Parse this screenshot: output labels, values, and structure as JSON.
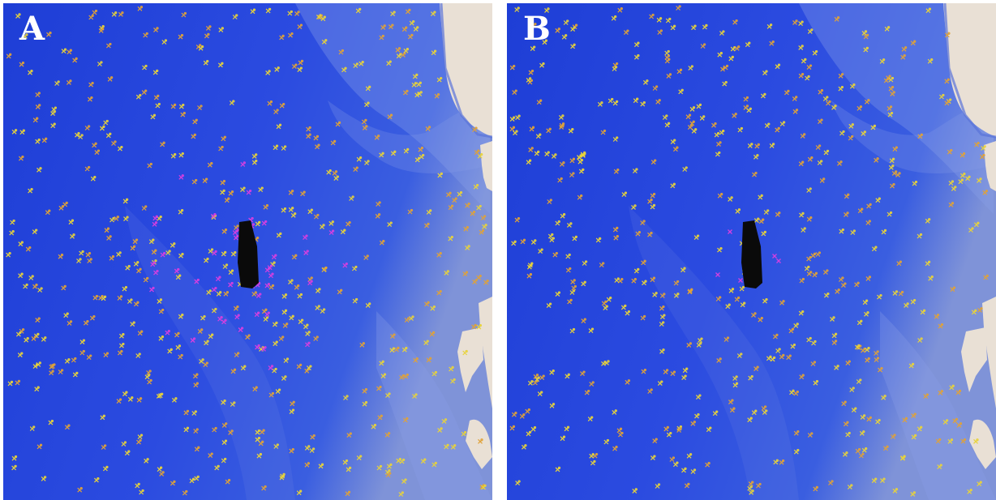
{
  "panels": [
    {
      "id": "A",
      "label": "A",
      "magenta_markers": true
    },
    {
      "id": "B",
      "label": "B",
      "magenta_markers": false
    }
  ],
  "colors": {
    "water_deep": "#1e3ed6",
    "water_mid": "#3a5ee0",
    "water_shallow": "#7f93d8",
    "land": "#e9e0d5",
    "marker_yellow": "#e8d33a",
    "marker_orange": "#e0a238",
    "marker_magenta": "#d43fe0",
    "cluster": "#0a0a0a"
  }
}
